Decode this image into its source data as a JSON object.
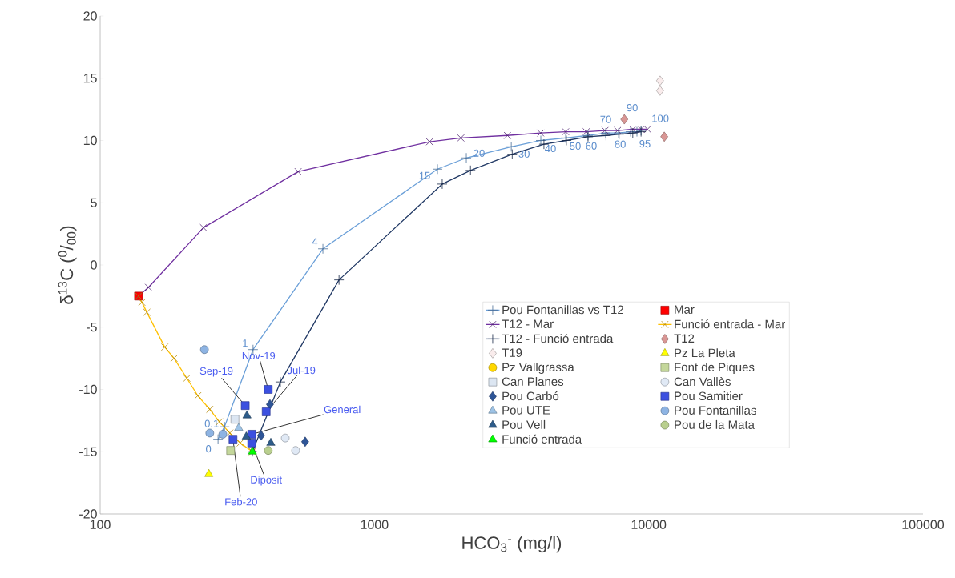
{
  "chart_data": {
    "type": "scatter",
    "xlabel": "HCO$_{3}$$^{-}$ (mg/l)",
    "ylabel": "δ$^{13}$C ($^{0}$/$_{00}$)",
    "log": "x",
    "xlim": [
      100,
      100000
    ],
    "xticks": [
      100,
      1000,
      10000,
      100000
    ],
    "ylim": [
      -20,
      20
    ],
    "yticks": [
      -20,
      -15,
      -10,
      -5,
      0,
      5,
      10,
      15,
      20
    ],
    "grid": false,
    "legend": "bottom right",
    "series": [
      {
        "name": "Pou Fontanillas vs T12",
        "type": "line",
        "marker": "plus",
        "color": "#6a9fd8",
        "x": [
          269,
          284,
          361,
          649,
          1698,
          2163,
          3155,
          4043,
          4980,
          6010,
          6970,
          7770,
          8590,
          9060,
          9380
        ],
        "values": [
          -14.0,
          -13.0,
          -6.8,
          1.3,
          7.7,
          8.6,
          9.5,
          10.0,
          10.2,
          10.4,
          10.6,
          10.6,
          10.7,
          10.7,
          10.8
        ]
      },
      {
        "name": "Mar",
        "marker": "square",
        "color": "#ff0000",
        "x": [
          138
        ],
        "values": [
          -2.5
        ]
      },
      {
        "name": "T12 - Mar",
        "type": "line",
        "marker": "cross",
        "color": "#7030a0",
        "x": [
          138,
          150,
          238,
          527,
          1589,
          2066,
          3055,
          4037,
          4980,
          5920,
          6930,
          7700,
          8750,
          9380,
          9900
        ],
        "values": [
          -2.5,
          -1.8,
          3.0,
          7.5,
          9.9,
          10.2,
          10.4,
          10.6,
          10.7,
          10.7,
          10.8,
          10.8,
          10.9,
          10.9,
          10.9
        ]
      },
      {
        "name": "Funció entrada - Mar",
        "type": "line",
        "marker": "cross",
        "color": "#ffc000",
        "x": [
          359,
          324,
          297,
          272,
          251,
          227,
          207,
          186,
          172,
          148,
          142,
          138
        ],
        "values": [
          -15.0,
          -14.3,
          -13.5,
          -12.6,
          -11.6,
          -10.5,
          -9.1,
          -7.5,
          -6.6,
          -3.8,
          -3.0,
          -2.5
        ]
      },
      {
        "name": "T12 - Funció entrada",
        "type": "line",
        "marker": "plus",
        "color": "#203864",
        "x": [
          359,
          454,
          743,
          1767,
          2240,
          3180,
          4150,
          5010,
          6010,
          6990,
          7800,
          8750,
          9380
        ],
        "values": [
          -15.0,
          -9.4,
          -1.2,
          6.5,
          7.6,
          8.9,
          9.7,
          10.0,
          10.3,
          10.4,
          10.5,
          10.6,
          10.7
        ]
      },
      {
        "name": "T12",
        "marker": "diamond",
        "color": "#d99694",
        "x": [
          8150,
          11400
        ],
        "values": [
          11.7,
          10.3
        ]
      },
      {
        "name": "T19",
        "marker": "diamond",
        "color": "#f9ecec",
        "x": [
          11000,
          11000
        ],
        "values": [
          14.8,
          14.0
        ]
      },
      {
        "name": "Pz La Pleta",
        "marker": "triangle",
        "color": "#ffff00",
        "x": [
          249
        ],
        "values": [
          -16.8
        ]
      },
      {
        "name": "Pz Vallgrassa",
        "marker": "circle",
        "color": "#ffd700"
      },
      {
        "name": "Font de Piques",
        "marker": "square",
        "color": "#c4d79b",
        "x": [
          299
        ],
        "values": [
          -14.9
        ]
      },
      {
        "name": "Can Planes",
        "marker": "square",
        "color": "#dce6f2",
        "x": [
          310
        ],
        "values": [
          -12.4
        ]
      },
      {
        "name": "Can Vallès",
        "marker": "circle",
        "color": "#e0e9f5",
        "x": [
          473,
          516
        ],
        "values": [
          -13.9,
          -14.9
        ]
      },
      {
        "name": "Pou Carbó",
        "marker": "diamond",
        "color": "#2e5597",
        "x": [
          416,
          386,
          559
        ],
        "values": [
          -11.2,
          -13.7,
          -14.2
        ]
      },
      {
        "name": "Pou Samitier",
        "marker": "square",
        "color": "#3c50e0",
        "x": [
          338,
          410,
          403,
          357,
          305,
          357
        ],
        "values": [
          -11.3,
          -10.0,
          -11.8,
          -13.6,
          -14.0,
          -14.3
        ]
      },
      {
        "name": "Pou UTE",
        "marker": "triangle",
        "color": "#9dc3e6",
        "x": [
          320
        ],
        "values": [
          -13.1
        ]
      },
      {
        "name": "Pou Fontanillas",
        "marker": "circle",
        "color": "#8eb4e3",
        "x": [
          240,
          251,
          280
        ],
        "values": [
          -6.8,
          -13.5,
          -13.6
        ]
      },
      {
        "name": "Pou Vell",
        "marker": "triangle",
        "color": "#2e5c8a",
        "x": [
          343,
          341,
          419
        ],
        "values": [
          -12.1,
          -13.8,
          -14.3
        ]
      },
      {
        "name": "Pou de la Mata",
        "marker": "circle",
        "color": "#b9cf8e",
        "x": [
          410
        ],
        "values": [
          -14.9
        ]
      },
      {
        "name": "Funció entrada",
        "marker": "triangle",
        "color": "#00ff00",
        "x": [
          359
        ],
        "values": [
          -15.0
        ]
      }
    ],
    "annotations": [
      {
        "text": "Sep-19",
        "x": 338,
        "y": -11.3
      },
      {
        "text": "Nov-19",
        "x": 410,
        "y": -10.0
      },
      {
        "text": "Jul-19",
        "x": 403,
        "y": -11.8
      },
      {
        "text": "General",
        "x": 357,
        "y": -13.6
      },
      {
        "text": "Diposit",
        "x": 357,
        "y": -14.3
      },
      {
        "text": "Feb-20",
        "x": 305,
        "y": -14.0
      },
      {
        "text": "0",
        "x": 269,
        "y": -14.0
      },
      {
        "text": "0.1",
        "x": 284,
        "y": -13.0
      },
      {
        "text": "1",
        "x": 361,
        "y": -6.8
      },
      {
        "text": "4",
        "x": 649,
        "y": 1.3
      },
      {
        "text": "15",
        "x": 1698,
        "y": 7.7
      },
      {
        "text": "20",
        "x": 2163,
        "y": 8.6
      },
      {
        "text": "30",
        "x": 3155,
        "y": 9.5
      },
      {
        "text": "40",
        "x": 4043,
        "y": 10.0
      },
      {
        "text": "50",
        "x": 4980,
        "y": 10.2
      },
      {
        "text": "60",
        "x": 6010,
        "y": 10.4
      },
      {
        "text": "70",
        "x": 6970,
        "y": 10.6
      },
      {
        "text": "80",
        "x": 7770,
        "y": 10.6
      },
      {
        "text": "90",
        "x": 8590,
        "y": 10.7
      },
      {
        "text": "95",
        "x": 9060,
        "y": 10.7
      },
      {
        "text": "100",
        "x": 9380,
        "y": 10.8
      }
    ]
  }
}
